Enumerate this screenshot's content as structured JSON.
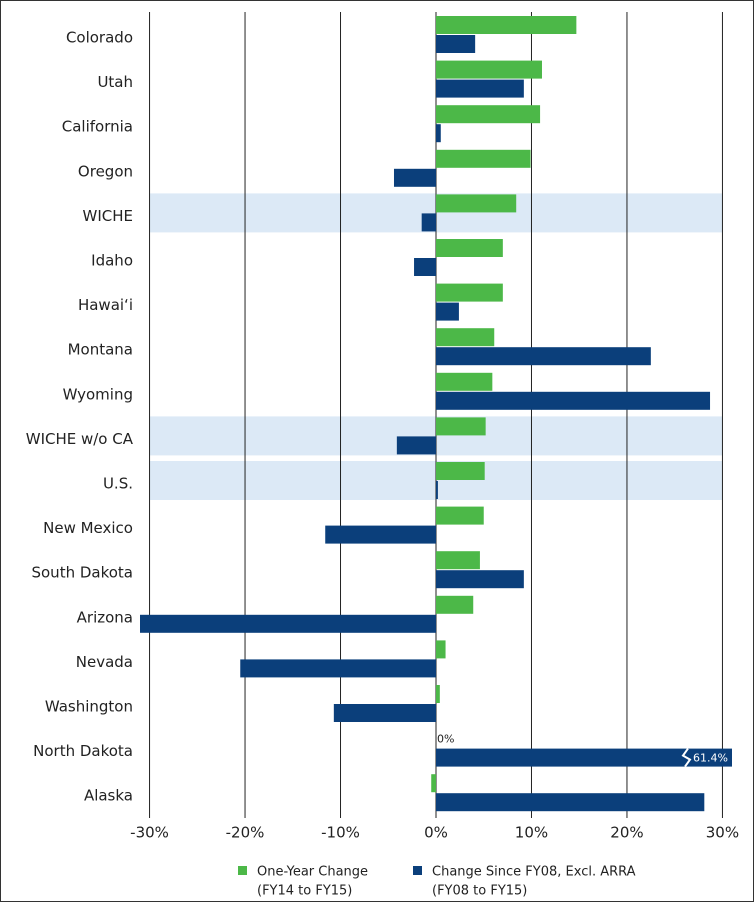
{
  "chart_data": {
    "type": "bar",
    "orientation": "horizontal",
    "categories": [
      "Colorado",
      "Utah",
      "California",
      "Oregon",
      "WICHE",
      "Idaho",
      "Hawai‘i",
      "Montana",
      "Wyoming",
      "WICHE w/o CA",
      "U.S.",
      "New Mexico",
      "South Dakota",
      "Arizona",
      "Nevada",
      "Washington",
      "North Dakota",
      "Alaska"
    ],
    "highlighted": [
      "WICHE",
      "WICHE w/o CA",
      "U.S."
    ],
    "highlight_color": "#dce9f6",
    "series": [
      {
        "name": "One-Year Change",
        "name_note": "(FY14 to FY15)",
        "color": "#4cb848",
        "values": [
          14.7,
          11.1,
          10.9,
          9.9,
          8.4,
          7.0,
          7.0,
          6.1,
          5.9,
          5.2,
          5.1,
          5.0,
          4.6,
          3.9,
          1.0,
          0.4,
          0,
          -0.5
        ],
        "value_labels": [
          null,
          null,
          null,
          null,
          null,
          null,
          null,
          null,
          null,
          null,
          null,
          null,
          null,
          null,
          null,
          null,
          "0%",
          null
        ]
      },
      {
        "name": "Change Since FY08, Excl. ARRA",
        "name_note": "(FY08 to FY15)",
        "color": "#0b3f7b",
        "values": [
          4.1,
          9.2,
          0.5,
          -4.4,
          -1.5,
          -2.3,
          2.4,
          22.5,
          28.7,
          -4.1,
          0.2,
          -11.6,
          9.2,
          -31.0,
          -20.5,
          -10.7,
          61.4,
          28.1
        ],
        "value_labels": [
          null,
          null,
          null,
          null,
          null,
          null,
          null,
          null,
          null,
          null,
          null,
          null,
          null,
          null,
          null,
          null,
          "61.4%",
          null
        ]
      }
    ],
    "xlim": [
      -31,
      31
    ],
    "xticks": [
      {
        "value": -30,
        "label": "-30%"
      },
      {
        "value": -20,
        "label": "-20%"
      },
      {
        "value": -10,
        "label": "-10%"
      },
      {
        "value": 0,
        "label": "0%"
      },
      {
        "value": 10,
        "label": "10%"
      },
      {
        "value": 20,
        "label": "20%"
      },
      {
        "value": 30,
        "label": "30%"
      }
    ],
    "grid": true
  }
}
